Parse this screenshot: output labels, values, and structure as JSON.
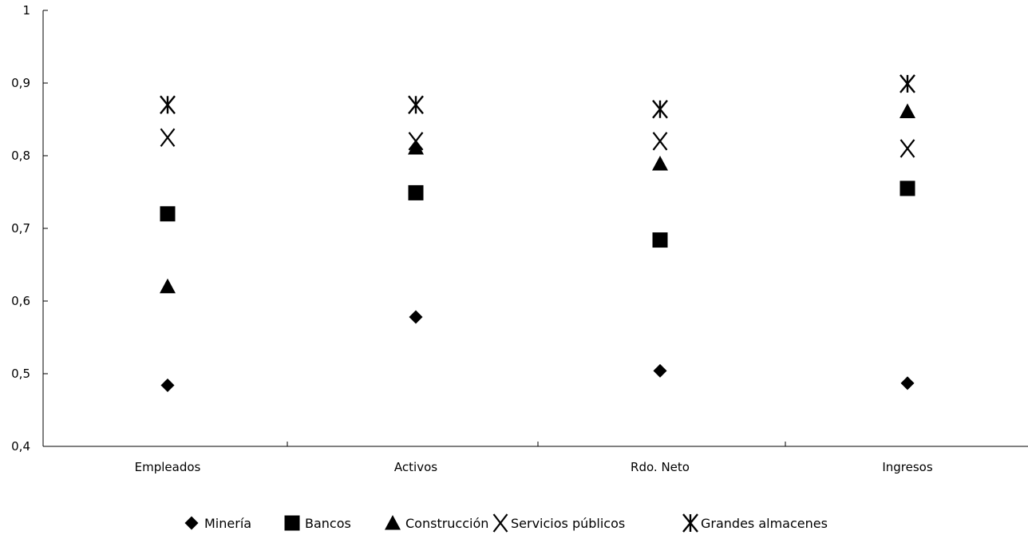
{
  "chart_data": {
    "type": "scatter",
    "title": "",
    "xlabel": "",
    "ylabel": "",
    "categories": [
      "Empleados",
      "Activos",
      "Rdo. Neto",
      "Ingresos"
    ],
    "ylim": [
      0.4,
      1
    ],
    "yticks": [
      0.4,
      0.5,
      0.6,
      0.7,
      0.8,
      0.9,
      1
    ],
    "ytick_labels": [
      "0,4",
      "0,5",
      "0,6",
      "0,7",
      "0,8",
      "0,9",
      "1"
    ],
    "grid": false,
    "legend_position": "bottom",
    "series": [
      {
        "name": "Minería",
        "marker": "diamond",
        "color": "#000000",
        "values": [
          0.484,
          0.578,
          0.504,
          0.487
        ]
      },
      {
        "name": "Bancos",
        "marker": "square",
        "color": "#000000",
        "values": [
          0.72,
          0.749,
          0.684,
          0.755
        ]
      },
      {
        "name": "Construcción",
        "marker": "triangle",
        "color": "#000000",
        "values": [
          0.62,
          0.811,
          0.789,
          0.861
        ]
      },
      {
        "name": "Servicios públicos",
        "marker": "x",
        "color": "#000000",
        "values": [
          0.825,
          0.82,
          0.82,
          0.81
        ]
      },
      {
        "name": "Grandes almacenes",
        "marker": "asterisk",
        "color": "#000000",
        "values": [
          0.87,
          0.87,
          0.864,
          0.899
        ]
      }
    ]
  }
}
